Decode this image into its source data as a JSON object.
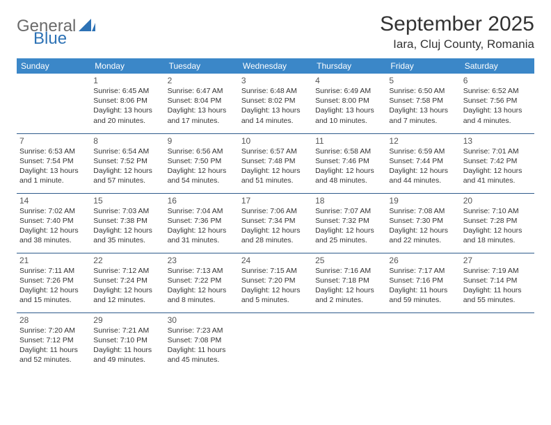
{
  "brand": {
    "part1": "General",
    "part2": "Blue"
  },
  "title": "September 2025",
  "location": "Iara, Cluj County, Romania",
  "colors": {
    "header_bg": "#3b87c8",
    "header_text": "#ffffff",
    "divider": "#2d5a8a",
    "body_text": "#333333",
    "logo_gray": "#6a6a6a",
    "logo_blue": "#2d72b5",
    "page_bg": "#ffffff"
  },
  "typography": {
    "title_fontsize": 30,
    "location_fontsize": 17,
    "header_fontsize": 12,
    "daynum_fontsize": 12,
    "cell_fontsize": 10.5
  },
  "weekdays": [
    "Sunday",
    "Monday",
    "Tuesday",
    "Wednesday",
    "Thursday",
    "Friday",
    "Saturday"
  ],
  "grid": {
    "rows": 5,
    "cols": 7,
    "cells": [
      [
        null,
        {
          "day": "1",
          "sunrise": "Sunrise: 6:45 AM",
          "sunset": "Sunset: 8:06 PM",
          "daylight1": "Daylight: 13 hours",
          "daylight2": "and 20 minutes."
        },
        {
          "day": "2",
          "sunrise": "Sunrise: 6:47 AM",
          "sunset": "Sunset: 8:04 PM",
          "daylight1": "Daylight: 13 hours",
          "daylight2": "and 17 minutes."
        },
        {
          "day": "3",
          "sunrise": "Sunrise: 6:48 AM",
          "sunset": "Sunset: 8:02 PM",
          "daylight1": "Daylight: 13 hours",
          "daylight2": "and 14 minutes."
        },
        {
          "day": "4",
          "sunrise": "Sunrise: 6:49 AM",
          "sunset": "Sunset: 8:00 PM",
          "daylight1": "Daylight: 13 hours",
          "daylight2": "and 10 minutes."
        },
        {
          "day": "5",
          "sunrise": "Sunrise: 6:50 AM",
          "sunset": "Sunset: 7:58 PM",
          "daylight1": "Daylight: 13 hours",
          "daylight2": "and 7 minutes."
        },
        {
          "day": "6",
          "sunrise": "Sunrise: 6:52 AM",
          "sunset": "Sunset: 7:56 PM",
          "daylight1": "Daylight: 13 hours",
          "daylight2": "and 4 minutes."
        }
      ],
      [
        {
          "day": "7",
          "sunrise": "Sunrise: 6:53 AM",
          "sunset": "Sunset: 7:54 PM",
          "daylight1": "Daylight: 13 hours",
          "daylight2": "and 1 minute."
        },
        {
          "day": "8",
          "sunrise": "Sunrise: 6:54 AM",
          "sunset": "Sunset: 7:52 PM",
          "daylight1": "Daylight: 12 hours",
          "daylight2": "and 57 minutes."
        },
        {
          "day": "9",
          "sunrise": "Sunrise: 6:56 AM",
          "sunset": "Sunset: 7:50 PM",
          "daylight1": "Daylight: 12 hours",
          "daylight2": "and 54 minutes."
        },
        {
          "day": "10",
          "sunrise": "Sunrise: 6:57 AM",
          "sunset": "Sunset: 7:48 PM",
          "daylight1": "Daylight: 12 hours",
          "daylight2": "and 51 minutes."
        },
        {
          "day": "11",
          "sunrise": "Sunrise: 6:58 AM",
          "sunset": "Sunset: 7:46 PM",
          "daylight1": "Daylight: 12 hours",
          "daylight2": "and 48 minutes."
        },
        {
          "day": "12",
          "sunrise": "Sunrise: 6:59 AM",
          "sunset": "Sunset: 7:44 PM",
          "daylight1": "Daylight: 12 hours",
          "daylight2": "and 44 minutes."
        },
        {
          "day": "13",
          "sunrise": "Sunrise: 7:01 AM",
          "sunset": "Sunset: 7:42 PM",
          "daylight1": "Daylight: 12 hours",
          "daylight2": "and 41 minutes."
        }
      ],
      [
        {
          "day": "14",
          "sunrise": "Sunrise: 7:02 AM",
          "sunset": "Sunset: 7:40 PM",
          "daylight1": "Daylight: 12 hours",
          "daylight2": "and 38 minutes."
        },
        {
          "day": "15",
          "sunrise": "Sunrise: 7:03 AM",
          "sunset": "Sunset: 7:38 PM",
          "daylight1": "Daylight: 12 hours",
          "daylight2": "and 35 minutes."
        },
        {
          "day": "16",
          "sunrise": "Sunrise: 7:04 AM",
          "sunset": "Sunset: 7:36 PM",
          "daylight1": "Daylight: 12 hours",
          "daylight2": "and 31 minutes."
        },
        {
          "day": "17",
          "sunrise": "Sunrise: 7:06 AM",
          "sunset": "Sunset: 7:34 PM",
          "daylight1": "Daylight: 12 hours",
          "daylight2": "and 28 minutes."
        },
        {
          "day": "18",
          "sunrise": "Sunrise: 7:07 AM",
          "sunset": "Sunset: 7:32 PM",
          "daylight1": "Daylight: 12 hours",
          "daylight2": "and 25 minutes."
        },
        {
          "day": "19",
          "sunrise": "Sunrise: 7:08 AM",
          "sunset": "Sunset: 7:30 PM",
          "daylight1": "Daylight: 12 hours",
          "daylight2": "and 22 minutes."
        },
        {
          "day": "20",
          "sunrise": "Sunrise: 7:10 AM",
          "sunset": "Sunset: 7:28 PM",
          "daylight1": "Daylight: 12 hours",
          "daylight2": "and 18 minutes."
        }
      ],
      [
        {
          "day": "21",
          "sunrise": "Sunrise: 7:11 AM",
          "sunset": "Sunset: 7:26 PM",
          "daylight1": "Daylight: 12 hours",
          "daylight2": "and 15 minutes."
        },
        {
          "day": "22",
          "sunrise": "Sunrise: 7:12 AM",
          "sunset": "Sunset: 7:24 PM",
          "daylight1": "Daylight: 12 hours",
          "daylight2": "and 12 minutes."
        },
        {
          "day": "23",
          "sunrise": "Sunrise: 7:13 AM",
          "sunset": "Sunset: 7:22 PM",
          "daylight1": "Daylight: 12 hours",
          "daylight2": "and 8 minutes."
        },
        {
          "day": "24",
          "sunrise": "Sunrise: 7:15 AM",
          "sunset": "Sunset: 7:20 PM",
          "daylight1": "Daylight: 12 hours",
          "daylight2": "and 5 minutes."
        },
        {
          "day": "25",
          "sunrise": "Sunrise: 7:16 AM",
          "sunset": "Sunset: 7:18 PM",
          "daylight1": "Daylight: 12 hours",
          "daylight2": "and 2 minutes."
        },
        {
          "day": "26",
          "sunrise": "Sunrise: 7:17 AM",
          "sunset": "Sunset: 7:16 PM",
          "daylight1": "Daylight: 11 hours",
          "daylight2": "and 59 minutes."
        },
        {
          "day": "27",
          "sunrise": "Sunrise: 7:19 AM",
          "sunset": "Sunset: 7:14 PM",
          "daylight1": "Daylight: 11 hours",
          "daylight2": "and 55 minutes."
        }
      ],
      [
        {
          "day": "28",
          "sunrise": "Sunrise: 7:20 AM",
          "sunset": "Sunset: 7:12 PM",
          "daylight1": "Daylight: 11 hours",
          "daylight2": "and 52 minutes."
        },
        {
          "day": "29",
          "sunrise": "Sunrise: 7:21 AM",
          "sunset": "Sunset: 7:10 PM",
          "daylight1": "Daylight: 11 hours",
          "daylight2": "and 49 minutes."
        },
        {
          "day": "30",
          "sunrise": "Sunrise: 7:23 AM",
          "sunset": "Sunset: 7:08 PM",
          "daylight1": "Daylight: 11 hours",
          "daylight2": "and 45 minutes."
        },
        null,
        null,
        null,
        null
      ]
    ]
  }
}
